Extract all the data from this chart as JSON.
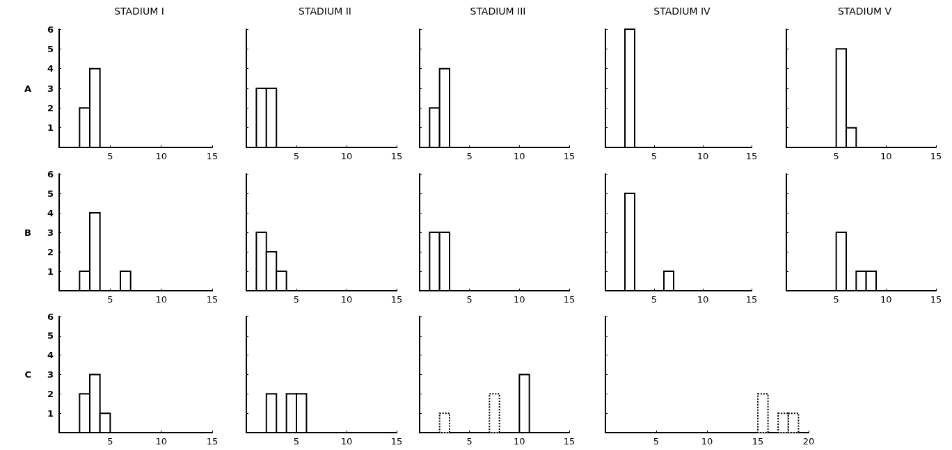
{
  "chart_data": [
    {
      "type": "histogram",
      "title": "STADIUM I",
      "ylabel": "A",
      "bins": [
        2,
        3,
        4
      ],
      "values": [
        2,
        4
      ],
      "color": "#000000",
      "xlim": [
        0,
        15
      ],
      "ylim": [
        0,
        6
      ],
      "xticks": [
        5,
        10,
        15
      ],
      "yticks": [
        1,
        2,
        3,
        4,
        5,
        6
      ]
    },
    {
      "type": "histogram",
      "title": "STADIUM II",
      "bins": [
        1,
        2,
        3
      ],
      "values": [
        3,
        3
      ],
      "color": "#000000",
      "xlim": [
        0,
        15
      ],
      "ylim": [
        0,
        6
      ],
      "xticks": [
        5,
        10,
        15
      ],
      "yticks": [
        1,
        2,
        3,
        4,
        5,
        6
      ],
      "tick_labels": "x"
    },
    {
      "type": "histogram",
      "title": "STADIUM III",
      "bins": [
        1,
        2,
        3
      ],
      "values": [
        2,
        4
      ],
      "color": "#000000",
      "xlim": [
        0,
        15
      ],
      "ylim": [
        0,
        6
      ],
      "xticks": [
        5,
        10,
        15
      ],
      "yticks": [
        1,
        2,
        3,
        4,
        5,
        6
      ],
      "tick_labels": "x"
    },
    {
      "type": "histogram",
      "title": "STADIUM IV",
      "bins": [
        2,
        3
      ],
      "values": [
        6
      ],
      "color": "#000000",
      "xlim": [
        0,
        15
      ],
      "ylim": [
        0,
        6
      ],
      "xticks": [
        5,
        10,
        15
      ],
      "yticks": [
        1,
        2,
        3,
        4,
        5,
        6
      ],
      "tick_labels": "x"
    },
    {
      "type": "histogram",
      "title": "STADIUM V",
      "bins": [
        5,
        6,
        7
      ],
      "values": [
        5,
        1
      ],
      "color": "#000000",
      "xlim": [
        0,
        15
      ],
      "ylim": [
        0,
        6
      ],
      "xticks": [
        5,
        10,
        15
      ],
      "yticks": [
        1,
        2,
        3,
        4,
        5,
        6
      ],
      "tick_labels": "x"
    },
    {
      "type": "histogram",
      "ylabel": "B",
      "bins": [
        2,
        3,
        4,
        5,
        6,
        7
      ],
      "values": [
        1,
        4,
        0,
        0,
        1
      ],
      "color": "#000000",
      "xlim": [
        0,
        15
      ],
      "ylim": [
        0,
        6
      ],
      "xticks": [
        5,
        10,
        15
      ],
      "yticks": [
        1,
        2,
        3,
        4,
        5,
        6
      ]
    },
    {
      "type": "histogram",
      "bins": [
        1,
        2,
        3,
        4
      ],
      "values": [
        3,
        2,
        1
      ],
      "color": "#000000",
      "xlim": [
        0,
        15
      ],
      "ylim": [
        0,
        6
      ],
      "xticks": [
        5,
        10,
        15
      ],
      "yticks": [
        1,
        2,
        3,
        4,
        5,
        6
      ],
      "tick_labels": "x"
    },
    {
      "type": "histogram",
      "bins": [
        1,
        2,
        3
      ],
      "values": [
        3,
        3
      ],
      "color": "#000000",
      "xlim": [
        0,
        15
      ],
      "ylim": [
        0,
        6
      ],
      "xticks": [
        5,
        10,
        15
      ],
      "yticks": [
        1,
        2,
        3,
        4,
        5,
        6
      ],
      "tick_labels": "x"
    },
    {
      "type": "histogram",
      "bins": [
        2,
        3,
        4,
        5,
        6,
        7
      ],
      "values": [
        5,
        0,
        0,
        0,
        1
      ],
      "color": "#000000",
      "xlim": [
        0,
        15
      ],
      "ylim": [
        0,
        6
      ],
      "xticks": [
        5,
        10,
        15
      ],
      "yticks": [
        1,
        2,
        3,
        4,
        5,
        6
      ],
      "tick_labels": "x"
    },
    {
      "type": "histogram",
      "bins": [
        5,
        6,
        7,
        8,
        9
      ],
      "values": [
        3,
        0,
        1,
        1
      ],
      "color": "#000000",
      "xlim": [
        0,
        15
      ],
      "ylim": [
        0,
        6
      ],
      "xticks": [
        5,
        10,
        15
      ],
      "yticks": [
        1,
        2,
        3,
        4,
        5,
        6
      ],
      "tick_labels": "x"
    },
    {
      "type": "histogram",
      "ylabel": "C",
      "bins": [
        2,
        3,
        4,
        5
      ],
      "values": [
        2,
        3,
        1
      ],
      "color": "#000000",
      "xlim": [
        0,
        15
      ],
      "ylim": [
        0,
        6
      ],
      "xticks": [
        5,
        10,
        15
      ],
      "yticks": [
        1,
        2,
        3,
        4,
        5,
        6
      ]
    },
    {
      "type": "histogram",
      "bins": [
        2,
        3,
        4,
        5,
        6
      ],
      "values": [
        2,
        0,
        2,
        2
      ],
      "color": "#000000",
      "xlim": [
        0,
        15
      ],
      "ylim": [
        0,
        6
      ],
      "xticks": [
        5,
        10,
        15
      ],
      "yticks": [
        1,
        2,
        3,
        4,
        5,
        6
      ],
      "tick_labels": "x"
    },
    {
      "type": "histogram",
      "bins": [
        2,
        3,
        4,
        5,
        6,
        7,
        8,
        9,
        10,
        11
      ],
      "series": [
        {
          "color": "#000000",
          "line_style": "solid",
          "values": [
            0,
            0,
            0,
            0,
            0,
            0,
            0,
            0,
            3
          ]
        },
        {
          "color": "#000000",
          "line_style": "dotted",
          "values": [
            1,
            0,
            0,
            0,
            0,
            2,
            0,
            0,
            0
          ]
        }
      ],
      "xlim": [
        0,
        15
      ],
      "ylim": [
        0,
        6
      ],
      "xticks": [
        5,
        10,
        15
      ],
      "yticks": [
        1,
        2,
        3,
        4,
        5,
        6
      ],
      "tick_labels": "x"
    },
    {
      "type": "histogram",
      "bins": [
        15,
        16,
        17,
        18,
        19
      ],
      "series": [
        {
          "color": "#000000",
          "line_style": "dotted",
          "values": [
            2,
            0,
            1,
            1
          ]
        }
      ],
      "xlim": [
        0,
        20
      ],
      "ylim": [
        0,
        6
      ],
      "xticks": [
        5,
        10,
        15,
        20
      ],
      "yticks": [
        1,
        2,
        3,
        4,
        5,
        6
      ],
      "tick_labels": "x"
    }
  ]
}
